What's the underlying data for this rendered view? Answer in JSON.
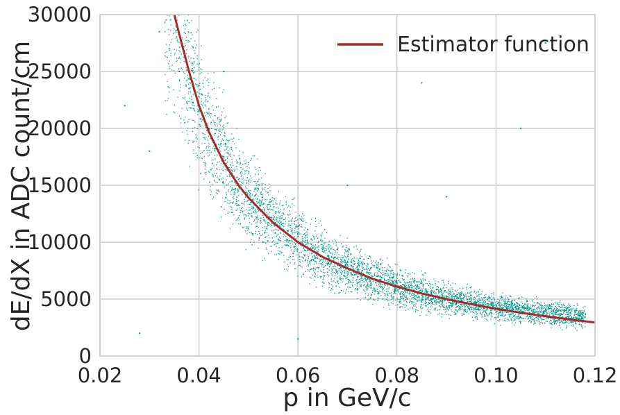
{
  "chart_data": {
    "type": "scatter",
    "title": "",
    "xlabel": "p in GeV/c",
    "ylabel": "dE/dX in ADC count/cm",
    "xlim": [
      0.02,
      0.12
    ],
    "ylim": [
      0,
      30000
    ],
    "xticks": [
      0.02,
      0.04,
      0.06,
      0.08,
      0.1,
      0.12
    ],
    "xtick_labels": [
      "0.02",
      "0.04",
      "0.06",
      "0.08",
      "0.10",
      "0.12"
    ],
    "yticks": [
      0,
      5000,
      10000,
      15000,
      20000,
      25000,
      30000
    ],
    "ytick_labels": [
      "0",
      "5000",
      "10000",
      "15000",
      "20000",
      "25000",
      "30000"
    ],
    "grid": true,
    "legend": {
      "position": "top-right",
      "entries": [
        "Estimator function"
      ]
    },
    "colors": {
      "scatter": "#009688",
      "curve": "#a52a2a",
      "grid": "#cccccc",
      "frame": "#cccccc"
    },
    "series": [
      {
        "name": "Estimator function",
        "kind": "line",
        "x": [
          0.035,
          0.036,
          0.038,
          0.04,
          0.042,
          0.045,
          0.048,
          0.05,
          0.055,
          0.06,
          0.065,
          0.07,
          0.075,
          0.08,
          0.085,
          0.09,
          0.095,
          0.1,
          0.105,
          0.11,
          0.115,
          0.12
        ],
        "y": [
          30000,
          28300,
          25000,
          22000,
          19700,
          17000,
          15000,
          13900,
          11700,
          10000,
          8700,
          7700,
          6800,
          6100,
          5500,
          5000,
          4550,
          4150,
          3800,
          3500,
          3200,
          2950
        ]
      },
      {
        "kind": "scatter",
        "x": [
          0.032,
          0.034,
          0.036,
          0.038,
          0.04,
          0.042,
          0.045,
          0.048,
          0.05,
          0.052,
          0.055,
          0.058,
          0.06,
          0.063,
          0.066,
          0.07,
          0.073,
          0.076,
          0.08,
          0.083,
          0.086,
          0.09,
          0.093,
          0.096,
          0.1,
          0.103,
          0.106,
          0.11,
          0.113,
          0.116,
          0.025,
          0.03,
          0.045,
          0.07,
          0.09,
          0.105,
          0.06,
          0.085,
          0.11,
          0.028
        ],
        "y": [
          28500,
          27000,
          25000,
          23500,
          21500,
          20000,
          17500,
          15500,
          14500,
          13500,
          12000,
          11000,
          10500,
          9500,
          8800,
          8000,
          7500,
          7000,
          6400,
          6000,
          5600,
          5200,
          4900,
          4700,
          4500,
          4300,
          4200,
          4100,
          4000,
          4000,
          22000,
          18000,
          25000,
          15000,
          14000,
          20000,
          1500,
          24000,
          27500,
          2000
        ]
      }
    ]
  }
}
